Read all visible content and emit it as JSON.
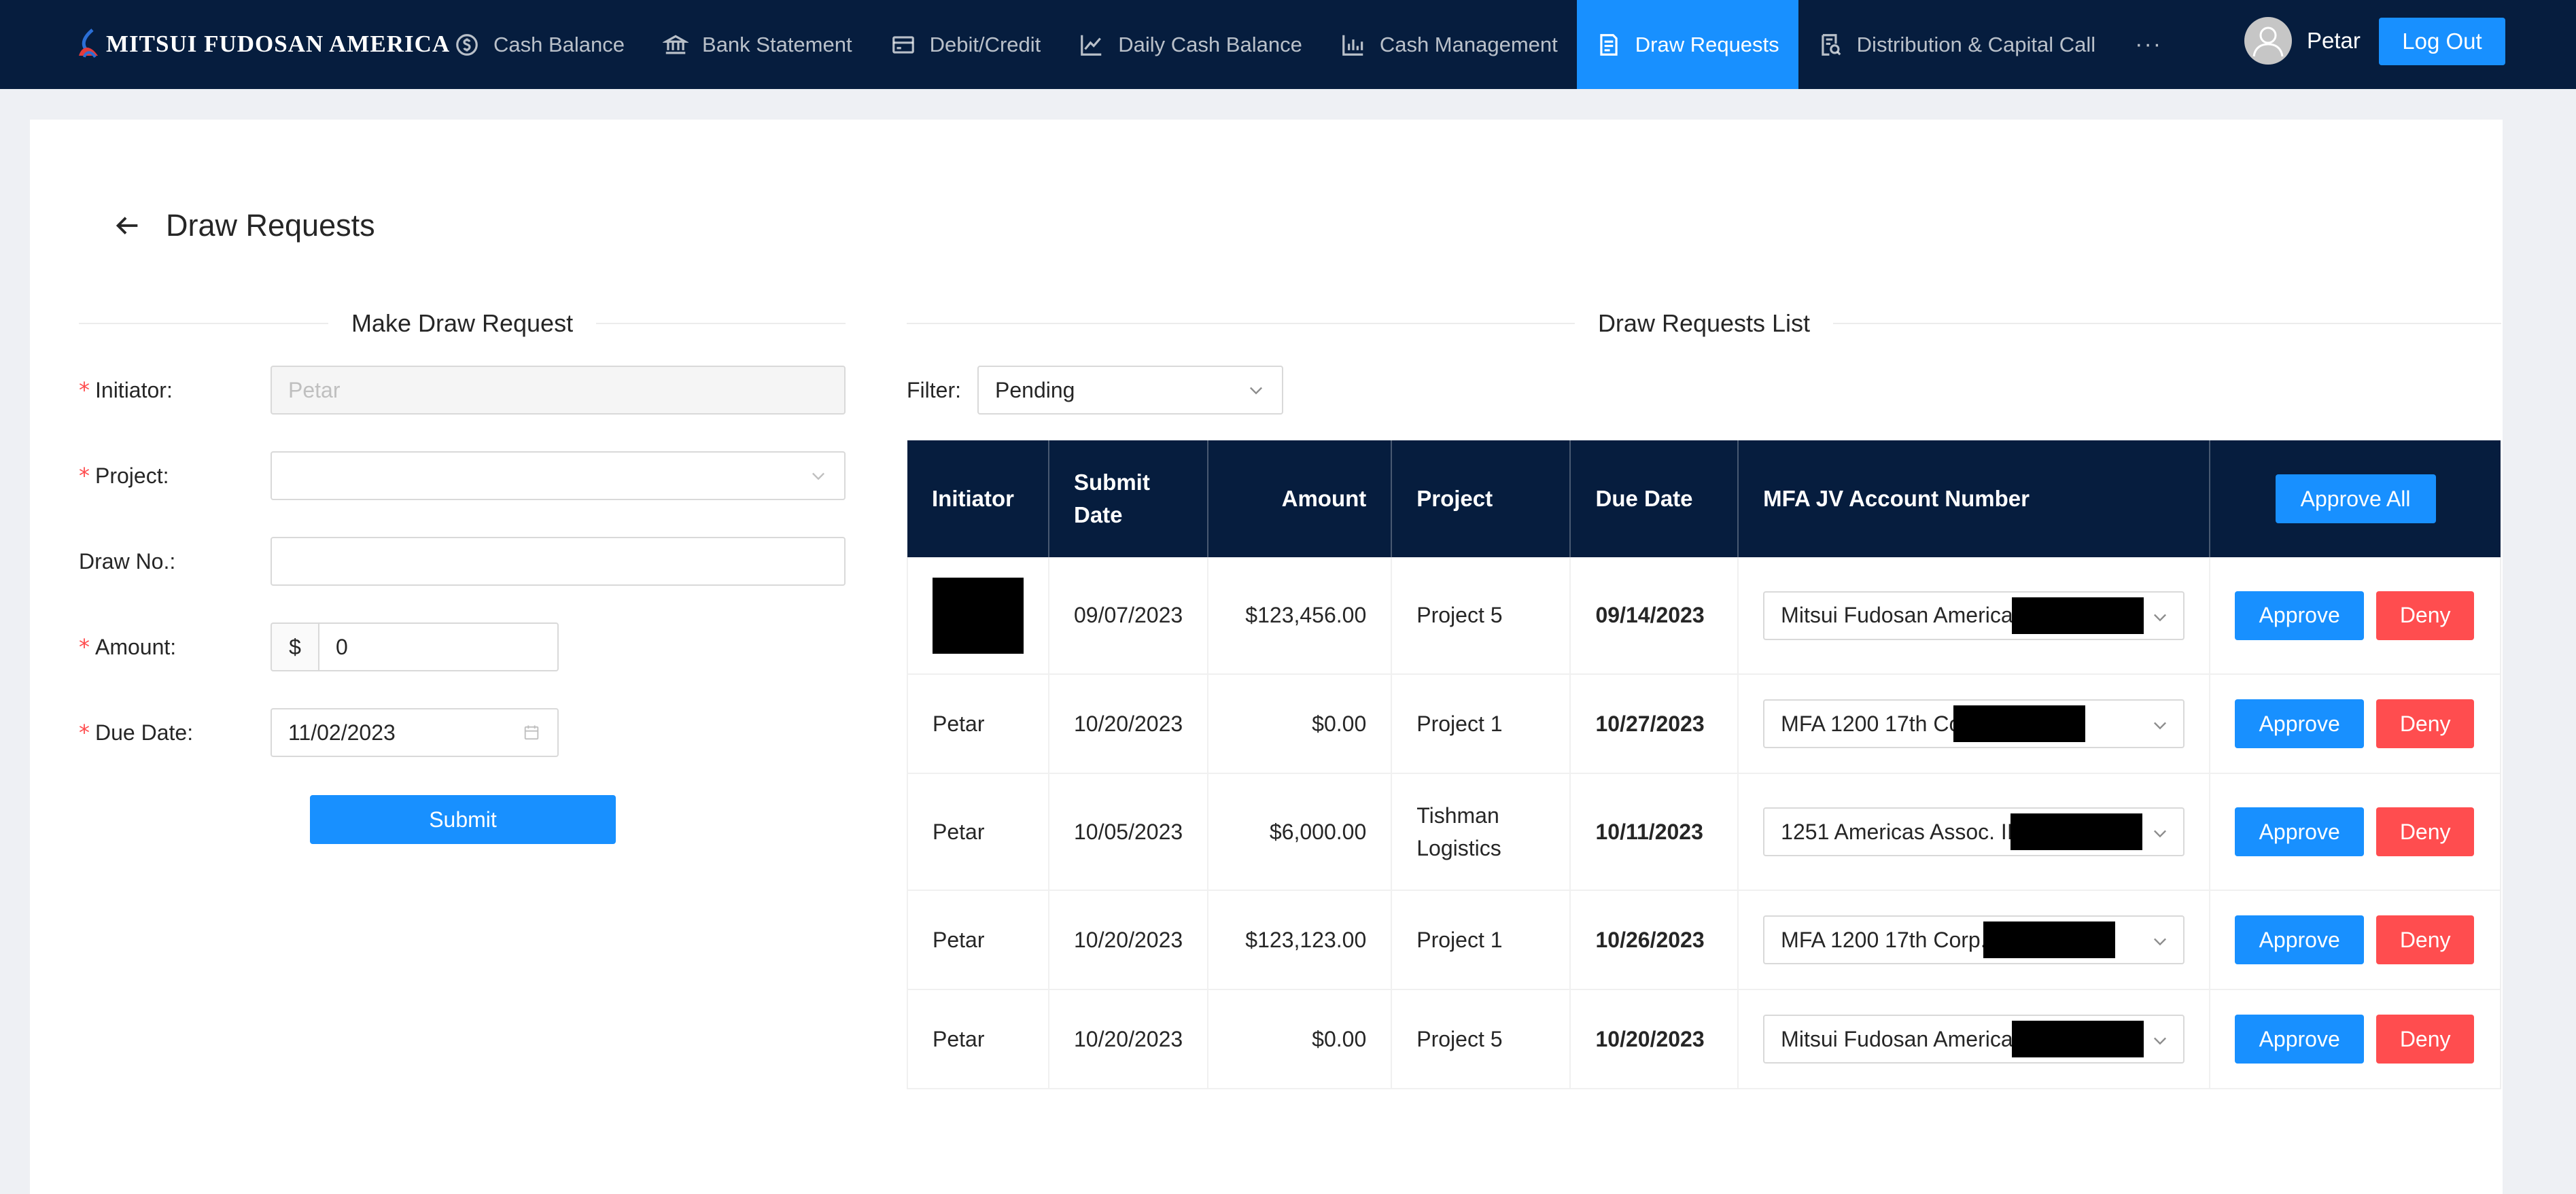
{
  "brand": {
    "name": "MITSUI FUDOSAN AMERICA"
  },
  "nav": {
    "items": [
      {
        "label": "Cash Balance",
        "icon": "dollar-circle-icon",
        "active": false
      },
      {
        "label": "Bank Statement",
        "icon": "bank-icon",
        "active": false
      },
      {
        "label": "Debit/Credit",
        "icon": "credit-card-icon",
        "active": false
      },
      {
        "label": "Daily Cash Balance",
        "icon": "line-chart-icon",
        "active": false
      },
      {
        "label": "Cash Management",
        "icon": "bar-chart-icon",
        "active": false
      },
      {
        "label": "Draw Requests",
        "icon": "file-text-icon",
        "active": true
      },
      {
        "label": "Distribution & Capital Call",
        "icon": "audit-icon",
        "active": false
      }
    ],
    "more": "···"
  },
  "user": {
    "name": "Petar",
    "logout_label": "Log Out"
  },
  "page": {
    "title": "Draw Requests"
  },
  "form": {
    "heading": "Make Draw Request",
    "initiator_label": "Initiator",
    "initiator_value": "Petar",
    "project_label": "Project",
    "project_value": "",
    "draw_no_label": "Draw No.",
    "draw_no_value": "",
    "amount_label": "Amount",
    "amount_prefix": "$",
    "amount_value": "0",
    "due_date_label": "Due Date",
    "due_date_value": "11/02/2023",
    "submit_label": "Submit"
  },
  "list": {
    "heading": "Draw Requests List",
    "filter_label": "Filter:",
    "filter_value": "Pending",
    "columns": [
      "Initiator",
      "Submit Date",
      "Amount",
      "Project",
      "Due Date",
      "MFA JV Account Number"
    ],
    "approve_all_label": "Approve All",
    "approve_label": "Approve",
    "deny_label": "Deny",
    "rows": [
      {
        "initiator": "",
        "submit_date": "09/07/2023",
        "amount": "$123,456.00",
        "project": "Project 5",
        "due_date": "09/14/2023",
        "account": "Mitsui Fudosan America,"
      },
      {
        "initiator": "Petar",
        "submit_date": "10/20/2023",
        "amount": "$0.00",
        "project": "Project 1",
        "due_date": "10/27/2023",
        "account": "MFA 1200 17th Co"
      },
      {
        "initiator": "Petar",
        "submit_date": "10/05/2023",
        "amount": "$6,000.00",
        "project": "Tishman Logistics",
        "due_date": "10/11/2023",
        "account": "1251 Americas Assoc. II,"
      },
      {
        "initiator": "Petar",
        "submit_date": "10/20/2023",
        "amount": "$123,123.00",
        "project": "Project 1",
        "due_date": "10/26/2023",
        "account": "MFA 1200 17th Corp."
      },
      {
        "initiator": "Petar",
        "submit_date": "10/20/2023",
        "amount": "$0.00",
        "project": "Project 5",
        "due_date": "10/20/2023",
        "account": "Mitsui Fudosan America,"
      }
    ]
  },
  "colors": {
    "nav_bg": "#061d3e",
    "accent": "#1890ff",
    "danger": "#ff4d4f",
    "page_bg": "#eef0f4"
  }
}
